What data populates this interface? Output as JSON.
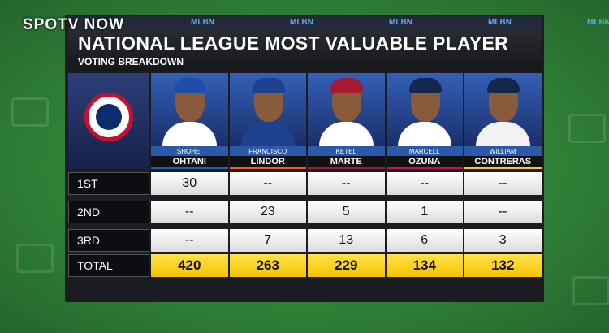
{
  "watermark": "SPOTV NOW",
  "ticker": [
    "MLBN",
    "MLBN",
    "MLBN",
    "MLBN",
    "MLBN"
  ],
  "header": {
    "title": "NATIONAL LEAGUE MOST VALUABLE PLAYER",
    "subtitle": "VOTING BREAKDOWN"
  },
  "table": {
    "players": [
      {
        "first": "SHOHEI",
        "last": "OHTANI"
      },
      {
        "first": "FRANCISCO",
        "last": "LINDOR"
      },
      {
        "first": "KETEL",
        "last": "MARTE"
      },
      {
        "first": "MARCELL",
        "last": "OZUNA"
      },
      {
        "first": "WILLIAM",
        "last": "CONTRERAS"
      }
    ],
    "rows": [
      {
        "label": "1ST",
        "cells": [
          "30",
          "--",
          "--",
          "--",
          "--"
        ]
      },
      {
        "label": "2ND",
        "cells": [
          "--",
          "23",
          "5",
          "1",
          "--"
        ]
      },
      {
        "label": "3RD",
        "cells": [
          "--",
          "7",
          "13",
          "6",
          "3"
        ]
      },
      {
        "label": "TOTAL",
        "cells": [
          "420",
          "263",
          "229",
          "134",
          "132"
        ]
      }
    ]
  }
}
